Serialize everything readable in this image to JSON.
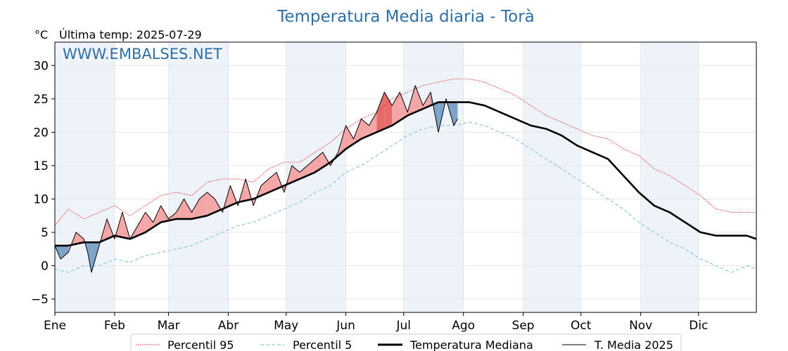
{
  "chart_data": {
    "type": "line",
    "title": "Temperatura Media diaria - Torà",
    "unit": "°C",
    "subtitle": "Última temp: 2025-07-29",
    "watermark": "WWW.EMBALSES.NET",
    "x_tick_labels": [
      "Ene",
      "Feb",
      "Mar",
      "Abr",
      "May",
      "Jun",
      "Jul",
      "Ago",
      "Sep",
      "Oct",
      "Nov",
      "Dic"
    ],
    "y_ticks": [
      -5,
      0,
      5,
      10,
      15,
      20,
      25,
      30
    ],
    "ylim": [
      -7,
      33.5
    ],
    "xlim": [
      1,
      365
    ],
    "grid": true,
    "legend_position": "bottom",
    "colors": {
      "p95": "#e8222a",
      "p5": "#8ec9dd",
      "median": "#000000",
      "current": "#000000",
      "above": "#f4a6a6",
      "above_strong": "#e86a6a",
      "below": "#7ea5c9",
      "below_strong": "#2f6f9a",
      "month_band": "#eef3fa",
      "title": "#2f6fa3"
    },
    "series": [
      {
        "name": "Percentil 95",
        "style": "dotted-red",
        "x": [
          1,
          8,
          16,
          24,
          32,
          40,
          48,
          56,
          64,
          72,
          80,
          88,
          96,
          104,
          112,
          120,
          128,
          136,
          144,
          152,
          160,
          168,
          176,
          184,
          192,
          200,
          208,
          216,
          224,
          232,
          240,
          248,
          256,
          264,
          272,
          280,
          288,
          296,
          304,
          312,
          320,
          328,
          336,
          344,
          352,
          360,
          365
        ],
        "y": [
          6,
          8.5,
          7,
          8,
          9,
          7.5,
          9,
          10.5,
          11,
          10.5,
          12.5,
          13,
          13,
          12.5,
          14.5,
          15.5,
          15.5,
          17,
          18.5,
          20.5,
          22,
          23,
          25,
          26,
          27,
          27.5,
          28,
          28,
          27.5,
          26.5,
          25.5,
          24,
          22.5,
          21.5,
          20.5,
          19.5,
          19,
          17.5,
          16.5,
          14.5,
          13.5,
          12,
          10.5,
          8.5,
          8,
          8,
          8
        ]
      },
      {
        "name": "Percentil 5",
        "style": "dashed-lightblue",
        "x": [
          1,
          8,
          16,
          24,
          32,
          40,
          48,
          56,
          64,
          72,
          80,
          88,
          96,
          104,
          112,
          120,
          128,
          136,
          144,
          152,
          160,
          168,
          176,
          184,
          192,
          200,
          208,
          216,
          224,
          232,
          240,
          248,
          256,
          264,
          272,
          280,
          288,
          296,
          304,
          312,
          320,
          328,
          336,
          344,
          352,
          360,
          365
        ],
        "y": [
          -0.5,
          -1,
          0,
          0,
          1,
          0.5,
          1.5,
          2,
          2.5,
          3,
          4,
          5,
          6,
          6.5,
          7.5,
          8.5,
          9.5,
          11,
          12,
          14,
          15,
          16.5,
          18,
          19.5,
          20.5,
          21,
          21,
          21.5,
          21,
          20,
          19,
          17.5,
          16,
          14.5,
          13,
          11.5,
          10,
          8.5,
          6.5,
          5,
          3.5,
          2.5,
          1,
          0,
          -1,
          0,
          -0.5
        ]
      },
      {
        "name": "Temperatura Mediana",
        "style": "thick-black",
        "x": [
          1,
          8,
          16,
          24,
          32,
          40,
          48,
          56,
          64,
          72,
          80,
          88,
          96,
          104,
          112,
          120,
          128,
          136,
          144,
          152,
          160,
          168,
          176,
          184,
          192,
          200,
          208,
          216,
          224,
          232,
          240,
          248,
          256,
          264,
          272,
          280,
          288,
          296,
          304,
          312,
          320,
          328,
          336,
          344,
          352,
          360,
          365
        ],
        "y": [
          3,
          3,
          3.5,
          3.5,
          4.5,
          4,
          5,
          6.5,
          7,
          7,
          7.5,
          8.5,
          9.5,
          10,
          11,
          12,
          13,
          14,
          15.5,
          17.5,
          19,
          20,
          21,
          22.5,
          23.5,
          24.5,
          24.5,
          24.5,
          24,
          23,
          22,
          21,
          20.5,
          19.5,
          18,
          17,
          16,
          13.5,
          11,
          9,
          8,
          6.5,
          5,
          4.5,
          4.5,
          4.5,
          4
        ]
      },
      {
        "name": "T. Media 2025",
        "style": "thin-black",
        "x": [
          1,
          4,
          8,
          12,
          16,
          18,
          20,
          24,
          28,
          32,
          36,
          40,
          44,
          48,
          52,
          56,
          60,
          64,
          68,
          72,
          76,
          80,
          84,
          88,
          92,
          96,
          100,
          104,
          108,
          112,
          116,
          120,
          124,
          128,
          132,
          136,
          140,
          144,
          148,
          152,
          156,
          160,
          164,
          168,
          172,
          176,
          180,
          184,
          188,
          192,
          196,
          200,
          204,
          208,
          210
        ],
        "y": [
          3,
          1,
          2,
          5,
          4,
          2,
          -1,
          3,
          7,
          4,
          8,
          4,
          6,
          8,
          6.5,
          9,
          7,
          8,
          10,
          8,
          10,
          11,
          10,
          8,
          12,
          9,
          13,
          9,
          12,
          13,
          14,
          11,
          15,
          14,
          15,
          16,
          17,
          15,
          17,
          21,
          19,
          22,
          21,
          23,
          26,
          24,
          26,
          23,
          27,
          24,
          26,
          20,
          25,
          21,
          22
        ]
      }
    ]
  }
}
